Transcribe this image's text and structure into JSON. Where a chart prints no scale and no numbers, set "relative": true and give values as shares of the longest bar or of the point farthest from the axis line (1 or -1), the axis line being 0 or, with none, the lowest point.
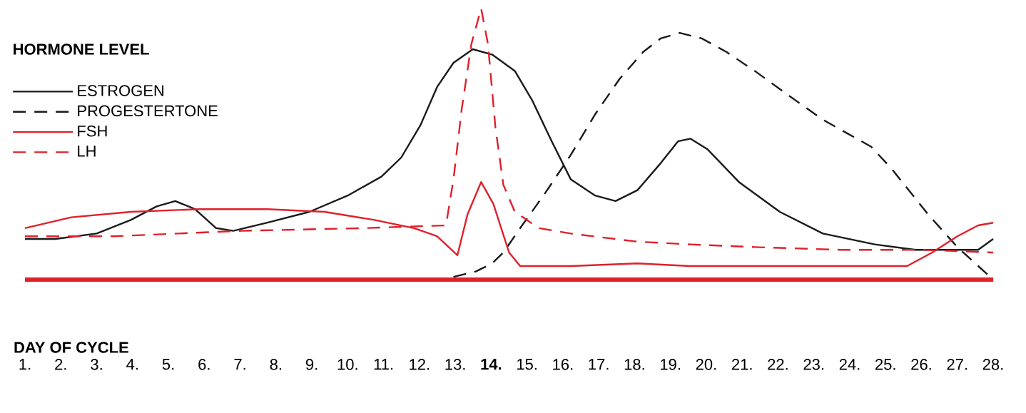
{
  "chart_data": {
    "type": "line",
    "relative": true,
    "xlabel": "DAY OF CYCLE",
    "ylabel": "HORMONE LEVEL",
    "legend": "top left",
    "marker": "none",
    "xlim": [
      1,
      28
    ],
    "xticks": [
      {
        "value": 1,
        "label": "1."
      },
      {
        "value": 2,
        "label": "2."
      },
      {
        "value": 3,
        "label": "3."
      },
      {
        "value": 4,
        "label": "4."
      },
      {
        "value": 5,
        "label": "5."
      },
      {
        "value": 6,
        "label": "6."
      },
      {
        "value": 7,
        "label": "7."
      },
      {
        "value": 8,
        "label": "8."
      },
      {
        "value": 9,
        "label": "9."
      },
      {
        "value": 10,
        "label": "10."
      },
      {
        "value": 11,
        "label": "11."
      },
      {
        "value": 12,
        "label": "12."
      },
      {
        "value": 13,
        "label": "13."
      },
      {
        "value": 14,
        "label": "**14.**"
      },
      {
        "value": 15,
        "label": "15."
      },
      {
        "value": 16,
        "label": "16."
      },
      {
        "value": 17,
        "label": "17."
      },
      {
        "value": 18,
        "label": "18."
      },
      {
        "value": 19,
        "label": "19."
      },
      {
        "value": 20,
        "label": "20."
      },
      {
        "value": 21,
        "label": "21."
      },
      {
        "value": 22,
        "label": "22."
      },
      {
        "value": 23,
        "label": "23."
      },
      {
        "value": 24,
        "label": "24."
      },
      {
        "value": 25,
        "label": "25."
      },
      {
        "value": 26,
        "label": "26."
      },
      {
        "value": 27,
        "label": "27."
      },
      {
        "value": 28,
        "label": "28."
      }
    ],
    "series": [
      {
        "name": "ESTROGEN",
        "color": "#1a1a1a",
        "line_style": "solid",
        "x": [
          1.0,
          1.85,
          3.0,
          3.95,
          4.67,
          5.19,
          5.74,
          6.33,
          6.81,
          7.76,
          8.93,
          10.0,
          10.94,
          11.49,
          12.03,
          12.49,
          12.95,
          13.49,
          14.03,
          14.66,
          15.15,
          15.69,
          16.22,
          16.9,
          17.47,
          18.08,
          18.73,
          19.21,
          19.56,
          20.04,
          20.91,
          22.05,
          23.25,
          24.7,
          25.84,
          27.0,
          27.58,
          28.0
        ],
        "values": [
          0.15,
          0.15,
          0.17,
          0.22,
          0.27,
          0.29,
          0.26,
          0.19,
          0.18,
          0.21,
          0.25,
          0.31,
          0.38,
          0.45,
          0.57,
          0.71,
          0.8,
          0.85,
          0.83,
          0.77,
          0.66,
          0.51,
          0.37,
          0.31,
          0.29,
          0.33,
          0.43,
          0.51,
          0.52,
          0.48,
          0.36,
          0.25,
          0.17,
          0.13,
          0.11,
          0.11,
          0.11,
          0.15
        ]
      },
      {
        "name": "PROGESTERTONE",
        "color": "#1a1a1a",
        "line_style": "dashed",
        "x": [
          12.95,
          13.57,
          14.03,
          14.34,
          14.81,
          15.51,
          16.22,
          16.9,
          17.58,
          18.24,
          18.73,
          19.26,
          19.87,
          20.56,
          21.35,
          22.29,
          23.25,
          24.6,
          25.16,
          26.19,
          27.0,
          28.0
        ],
        "values": [
          0.01,
          0.03,
          0.06,
          0.1,
          0.19,
          0.32,
          0.46,
          0.61,
          0.74,
          0.84,
          0.89,
          0.91,
          0.89,
          0.84,
          0.77,
          0.68,
          0.59,
          0.49,
          0.41,
          0.24,
          0.12,
          0.0
        ]
      },
      {
        "name": "FSH",
        "color": "#e0202a",
        "line_style": "solid",
        "x": [
          1.0,
          2.29,
          3.95,
          5.86,
          7.76,
          9.36,
          10.75,
          11.85,
          12.49,
          13.06,
          13.34,
          13.72,
          14.06,
          14.5,
          14.81,
          16.22,
          18.08,
          19.54,
          21.35,
          23.75,
          25.6,
          26.3,
          27.0,
          27.58,
          28.0
        ],
        "values": [
          0.19,
          0.23,
          0.25,
          0.26,
          0.26,
          0.25,
          0.22,
          0.19,
          0.16,
          0.09,
          0.24,
          0.36,
          0.28,
          0.1,
          0.05,
          0.05,
          0.06,
          0.05,
          0.05,
          0.05,
          0.05,
          0.1,
          0.16,
          0.2,
          0.21
        ]
      },
      {
        "name": "LH",
        "color": "#e0202a",
        "line_style": "dashed",
        "x": [
          1.0,
          3.48,
          7.05,
          10.43,
          12.74,
          12.95,
          13.18,
          13.45,
          13.72,
          13.91,
          14.12,
          14.34,
          14.66,
          15.33,
          16.22,
          18.08,
          19.54,
          21.35,
          23.75,
          26.07,
          28.0
        ],
        "values": [
          0.16,
          0.16,
          0.18,
          0.19,
          0.2,
          0.37,
          0.63,
          0.87,
          1.0,
          0.87,
          0.56,
          0.35,
          0.25,
          0.19,
          0.17,
          0.14,
          0.13,
          0.12,
          0.11,
          0.11,
          0.1
        ]
      }
    ]
  }
}
